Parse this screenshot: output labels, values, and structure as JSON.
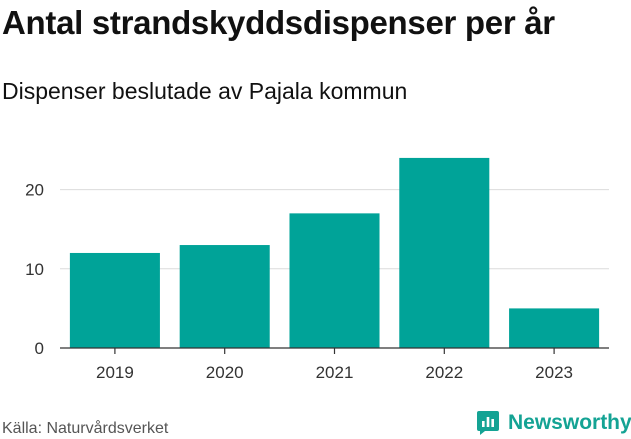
{
  "header": {
    "title": "Antal strandskyddsdispenser per år",
    "subtitle": "Dispenser beslutade av Pajala kommun"
  },
  "footer": {
    "source": "Källa: Naturvårdsverket",
    "brand": "Newsworthy",
    "brand_icon": "newsworthy-logo-icon"
  },
  "colors": {
    "bar": "#00a398",
    "grid": "#dcdcdc",
    "axis": "#333333",
    "brand": "#14a394"
  },
  "chart_data": {
    "type": "bar",
    "title": "Antal strandskyddsdispenser per år",
    "subtitle": "Dispenser beslutade av Pajala kommun",
    "categories": [
      "2019",
      "2020",
      "2021",
      "2022",
      "2023"
    ],
    "values": [
      12,
      13,
      17,
      24,
      5
    ],
    "xlabel": "",
    "ylabel": "",
    "ylim": [
      0,
      25
    ],
    "yticks": [
      0,
      10,
      20
    ],
    "grid": true,
    "legend": "none"
  }
}
